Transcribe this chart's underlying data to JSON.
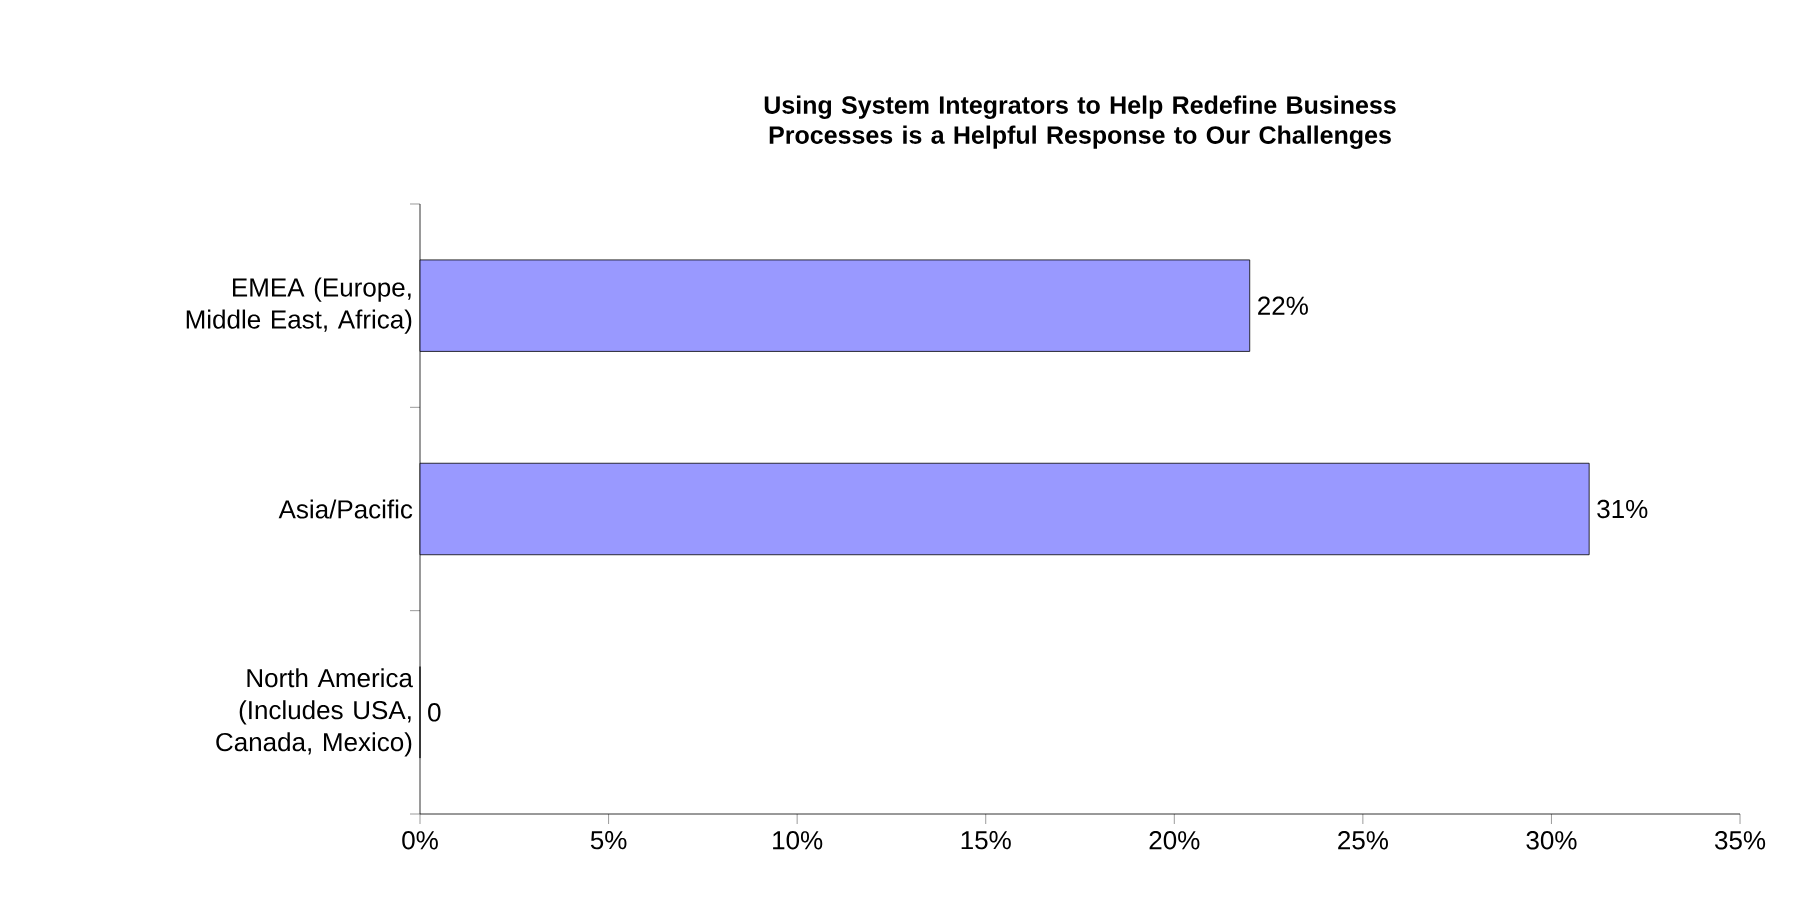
{
  "chart_data": {
    "type": "bar",
    "orientation": "horizontal",
    "title": "Using System Integrators to Help Redefine Business Processes is a Helpful Response to Our Challenges",
    "categories": [
      "EMEA (Europe, Middle East, Africa)",
      "Asia/Pacific",
      "North America (Includes USA, Canada, Mexico)"
    ],
    "values": [
      22,
      31,
      0
    ],
    "value_labels": [
      "22%",
      "31%",
      "0"
    ],
    "color": "#9999ff",
    "xlim": [
      0,
      35
    ],
    "xticks": [
      {
        "value": 0,
        "label": "0%"
      },
      {
        "value": 5,
        "label": "5%"
      },
      {
        "value": 10,
        "label": "10%"
      },
      {
        "value": 15,
        "label": "15%"
      },
      {
        "value": 20,
        "label": "20%"
      },
      {
        "value": 25,
        "label": "25%"
      },
      {
        "value": 30,
        "label": "30%"
      },
      {
        "value": 35,
        "label": "35%"
      }
    ],
    "grid": false
  }
}
